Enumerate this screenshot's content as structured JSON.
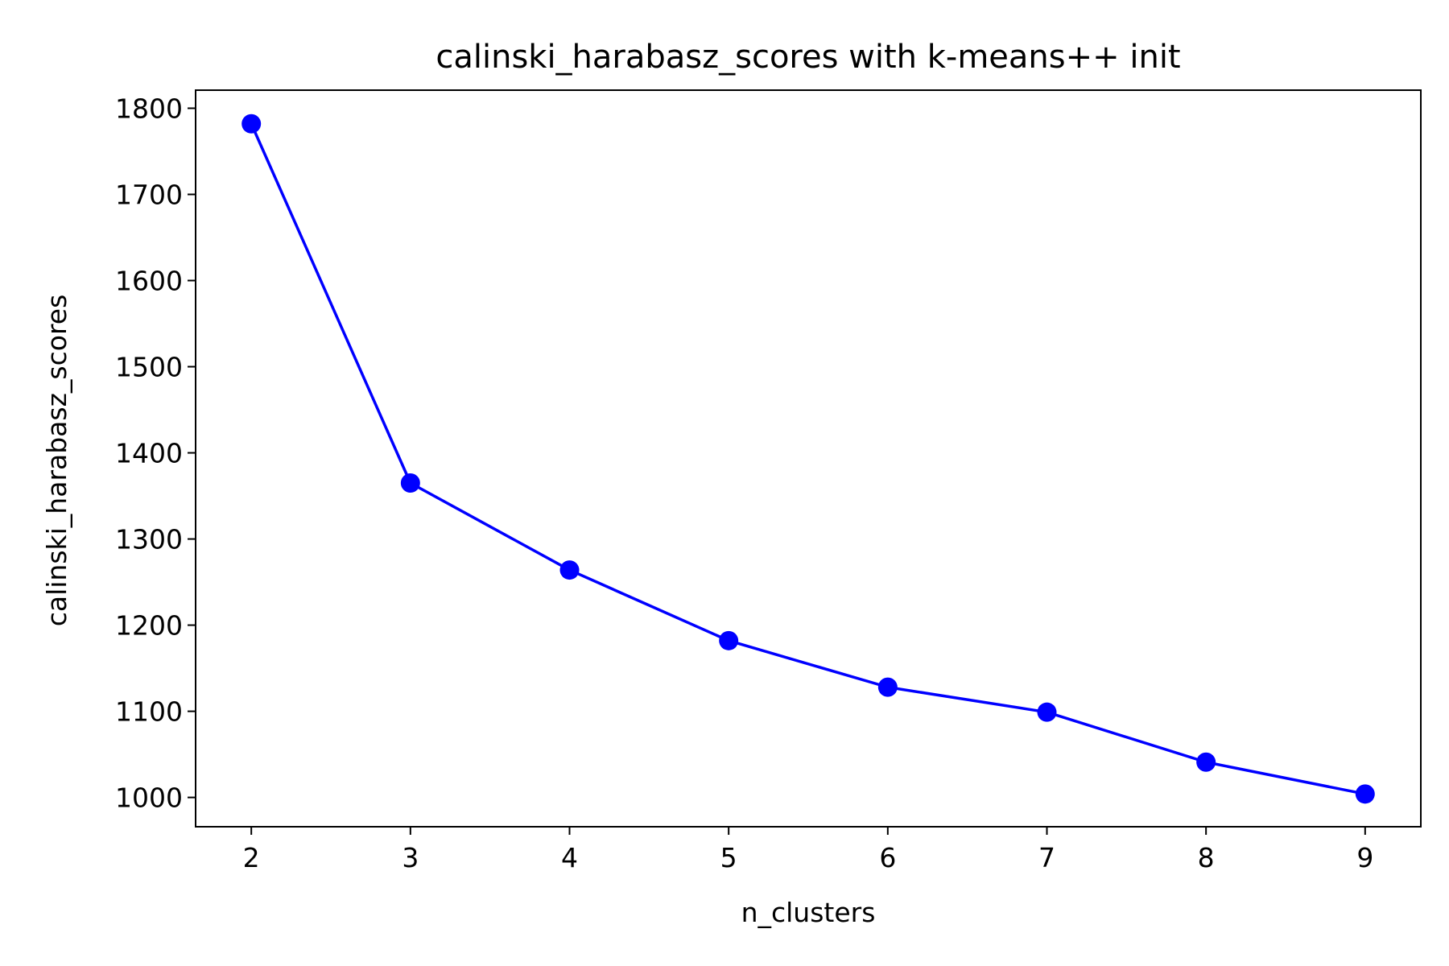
{
  "chart_data": {
    "type": "line",
    "title": "calinski_harabasz_scores with k-means++ init",
    "xlabel": "n_clusters",
    "ylabel": "calinski_harabasz_scores",
    "x": [
      2,
      3,
      4,
      5,
      6,
      7,
      8,
      9
    ],
    "series": [
      {
        "values": [
          1782,
          1365,
          1264,
          1182,
          1128,
          1099,
          1041,
          1004
        ],
        "color": "#0000ff",
        "marker": "circle"
      }
    ],
    "xticks": [
      "2",
      "3",
      "4",
      "5",
      "6",
      "7",
      "8",
      "9"
    ],
    "yticks": [
      "1000",
      "1100",
      "1200",
      "1300",
      "1400",
      "1500",
      "1600",
      "1700",
      "1800"
    ],
    "xlim": [
      1.65,
      9.35
    ],
    "ylim": [
      966,
      1821
    ],
    "grid": false,
    "legend": "none"
  }
}
